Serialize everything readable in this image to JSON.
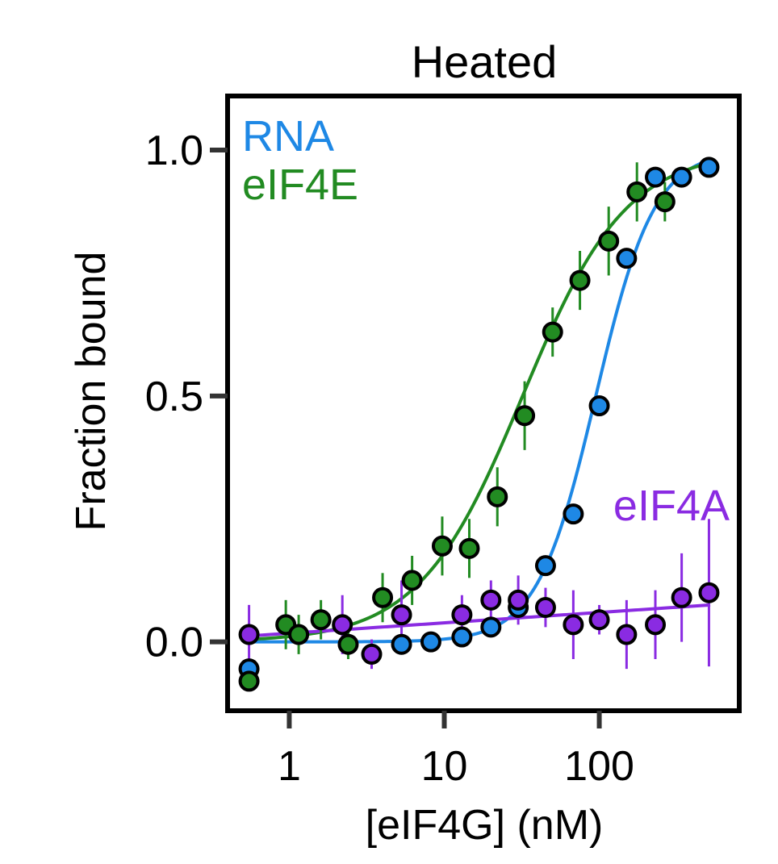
{
  "chart_data": {
    "type": "scatter",
    "title": "Heated",
    "xlabel": "[eIF4G] (nM)",
    "ylabel": "Fraction bound",
    "x_scale": "log",
    "xlim": [
      0.4,
      800
    ],
    "ylim": [
      -0.14,
      1.11
    ],
    "x_ticks": [
      {
        "value": 1,
        "label": "1"
      },
      {
        "value": 10,
        "label": "10"
      },
      {
        "value": 100,
        "label": "100"
      }
    ],
    "y_ticks": [
      {
        "value": 0.0,
        "label": "0.0"
      },
      {
        "value": 0.5,
        "label": "0.5"
      },
      {
        "value": 1.0,
        "label": "1.0"
      }
    ],
    "grid": false,
    "series": [
      {
        "name": "RNA",
        "color": "#1e88e5",
        "label_position": "top-left",
        "points": [
          {
            "x": 0.55,
            "y": -0.055
          },
          {
            "x": 5.3,
            "y": -0.005
          },
          {
            "x": 8.2,
            "y": 0.0
          },
          {
            "x": 13,
            "y": 0.01
          },
          {
            "x": 20,
            "y": 0.03
          },
          {
            "x": 30,
            "y": 0.07
          },
          {
            "x": 45,
            "y": 0.155
          },
          {
            "x": 68,
            "y": 0.26
          },
          {
            "x": 100,
            "y": 0.48
          },
          {
            "x": 150,
            "y": 0.78
          },
          {
            "x": 230,
            "y": 0.945
          },
          {
            "x": 340,
            "y": 0.945
          },
          {
            "x": 510,
            "y": 0.965
          }
        ],
        "fit": {
          "model": "hill",
          "ec50": 95,
          "hill": 2.3,
          "bottom": 0.0,
          "top": 1.0
        }
      },
      {
        "name": "eIF4E",
        "color": "#228b22",
        "label_position": "top-left",
        "points": [
          {
            "x": 0.55,
            "y": -0.08,
            "err": 0.0
          },
          {
            "x": 0.95,
            "y": 0.035,
            "err": 0.05
          },
          {
            "x": 1.15,
            "y": 0.015,
            "err": 0.04
          },
          {
            "x": 1.6,
            "y": 0.045,
            "err": 0.04
          },
          {
            "x": 2.4,
            "y": -0.005,
            "err": 0.03
          },
          {
            "x": 4.0,
            "y": 0.09,
            "err": 0.05
          },
          {
            "x": 6.2,
            "y": 0.125,
            "err": 0.05
          },
          {
            "x": 9.7,
            "y": 0.195,
            "err": 0.06
          },
          {
            "x": 14.5,
            "y": 0.19,
            "err": 0.06
          },
          {
            "x": 22,
            "y": 0.295,
            "err": 0.06
          },
          {
            "x": 33,
            "y": 0.46,
            "err": 0.07
          },
          {
            "x": 50,
            "y": 0.63,
            "err": 0.05
          },
          {
            "x": 75,
            "y": 0.735,
            "err": 0.06
          },
          {
            "x": 115,
            "y": 0.815,
            "err": 0.07
          },
          {
            "x": 175,
            "y": 0.915,
            "err": 0.06
          },
          {
            "x": 265,
            "y": 0.895,
            "err": 0.04
          }
        ],
        "fit": {
          "model": "hill",
          "ec50": 32,
          "hill": 1.3,
          "bottom": 0.0,
          "top": 1.0
        }
      },
      {
        "name": "eIF4A",
        "color": "#8a2be2",
        "label_position": "right",
        "points": [
          {
            "x": 0.55,
            "y": 0.015,
            "err": 0.06
          },
          {
            "x": 2.2,
            "y": 0.035,
            "err": 0.06
          },
          {
            "x": 3.4,
            "y": -0.025,
            "err": 0.03
          },
          {
            "x": 5.3,
            "y": 0.055,
            "err": 0.07
          },
          {
            "x": 13,
            "y": 0.055,
            "err": 0.04
          },
          {
            "x": 20,
            "y": 0.085,
            "err": 0.04
          },
          {
            "x": 30,
            "y": 0.085,
            "err": 0.05
          },
          {
            "x": 45,
            "y": 0.07,
            "err": 0.04
          },
          {
            "x": 68,
            "y": 0.035,
            "err": 0.07
          },
          {
            "x": 100,
            "y": 0.045,
            "err": 0.03
          },
          {
            "x": 150,
            "y": 0.015,
            "err": 0.07
          },
          {
            "x": 230,
            "y": 0.035,
            "err": 0.07
          },
          {
            "x": 340,
            "y": 0.09,
            "err": 0.09
          },
          {
            "x": 510,
            "y": 0.1,
            "err": 0.15
          }
        ],
        "fit": {
          "model": "linear-log",
          "y_at_xmin": 0.012,
          "y_at_xmax": 0.075
        }
      }
    ]
  }
}
